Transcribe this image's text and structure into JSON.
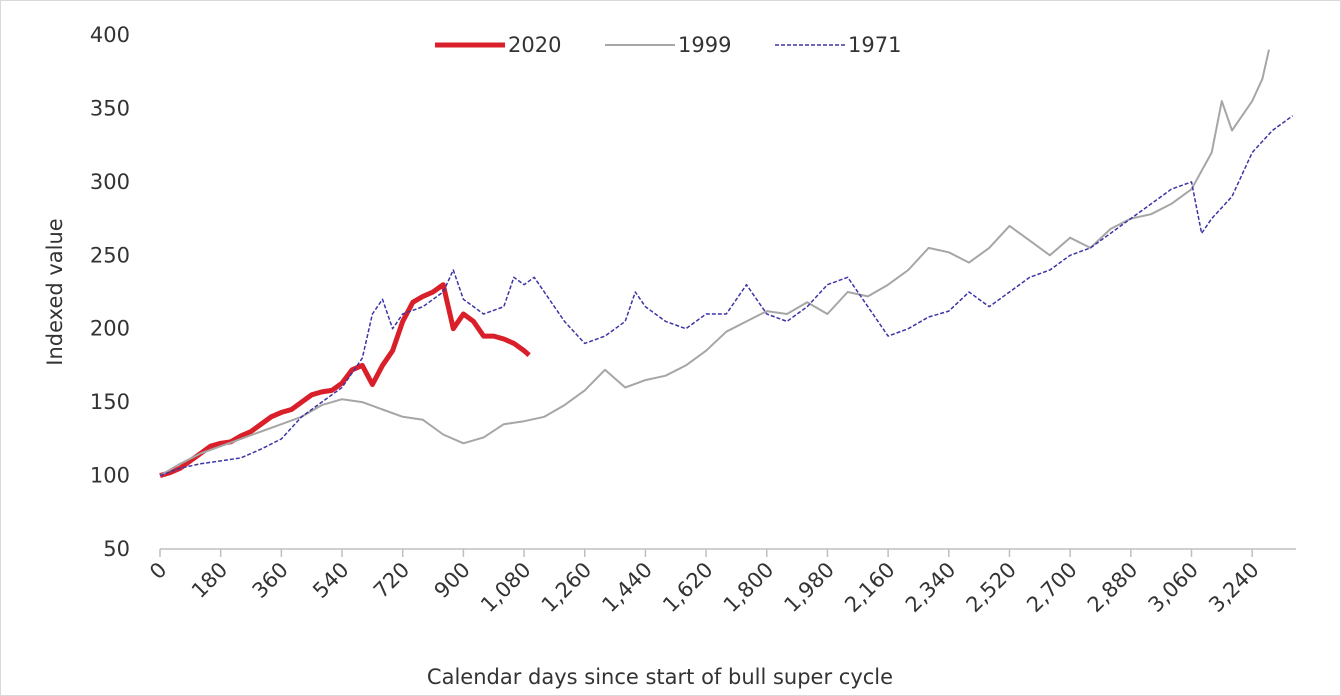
{
  "chart_data": {
    "type": "line",
    "x_label": "Calendar days since start of bull super cycle",
    "y_label": "Indexed value",
    "xlim": [
      0,
      3370
    ],
    "ylim": [
      50,
      400
    ],
    "xticks": [
      0,
      180,
      360,
      540,
      720,
      900,
      {
        "value": 1080,
        "label": "1,080"
      },
      {
        "value": 1260,
        "label": "1,260"
      },
      {
        "value": 1440,
        "label": "1,440"
      },
      {
        "value": 1620,
        "label": "1,620"
      },
      {
        "value": 1800,
        "label": "1,800"
      },
      {
        "value": 1980,
        "label": "1,980"
      },
      {
        "value": 2160,
        "label": "2,160"
      },
      {
        "value": 2340,
        "label": "2,340"
      },
      {
        "value": 2520,
        "label": "2,520"
      },
      {
        "value": 2700,
        "label": "2,700"
      },
      {
        "value": 2880,
        "label": "2,880"
      },
      {
        "value": 3060,
        "label": "3,060"
      },
      {
        "value": 3240,
        "label": "3,240"
      }
    ],
    "yticks": [
      50,
      100,
      150,
      200,
      250,
      300,
      350,
      400
    ],
    "grid": false,
    "legend": "top",
    "series": [
      {
        "name": "2020",
        "color": "#d9202a",
        "width": 5,
        "dashed": false,
        "x": [
          0,
          30,
          60,
          90,
          120,
          150,
          180,
          210,
          240,
          270,
          300,
          330,
          360,
          390,
          420,
          450,
          480,
          510,
          540,
          570,
          600,
          630,
          660,
          690,
          720,
          750,
          780,
          810,
          840,
          870,
          900,
          930,
          960,
          990,
          1020,
          1050,
          1080,
          1095
        ],
        "values": [
          100,
          102,
          105,
          110,
          115,
          120,
          122,
          123,
          127,
          130,
          135,
          140,
          143,
          145,
          150,
          155,
          157,
          158,
          163,
          172,
          175,
          162,
          175,
          185,
          205,
          218,
          222,
          225,
          230,
          200,
          210,
          205,
          195,
          195,
          193,
          190,
          185,
          182
        ]
      },
      {
        "name": "1999",
        "color": "#a6a6a6",
        "width": 2,
        "dashed": false,
        "x": [
          0,
          60,
          120,
          180,
          240,
          300,
          360,
          420,
          480,
          540,
          600,
          660,
          720,
          780,
          840,
          900,
          960,
          1020,
          1080,
          1140,
          1200,
          1260,
          1320,
          1380,
          1440,
          1500,
          1560,
          1620,
          1680,
          1740,
          1800,
          1860,
          1920,
          1980,
          2040,
          2100,
          2160,
          2220,
          2280,
          2340,
          2400,
          2460,
          2520,
          2580,
          2640,
          2700,
          2760,
          2820,
          2880,
          2940,
          3000,
          3060,
          3120,
          3150,
          3180,
          3240,
          3270,
          3290
        ],
        "values": [
          100,
          108,
          115,
          120,
          125,
          130,
          135,
          140,
          148,
          152,
          150,
          145,
          140,
          138,
          128,
          122,
          126,
          135,
          137,
          140,
          148,
          158,
          172,
          160,
          165,
          168,
          175,
          185,
          198,
          205,
          212,
          210,
          218,
          210,
          225,
          222,
          230,
          240,
          255,
          252,
          245,
          255,
          270,
          260,
          250,
          262,
          255,
          268,
          275,
          278,
          285,
          295,
          320,
          355,
          335,
          355,
          370,
          390
        ]
      },
      {
        "name": "1971",
        "color": "#3b35a6",
        "width": 1.5,
        "dashed": true,
        "x": [
          0,
          60,
          120,
          180,
          240,
          300,
          360,
          420,
          480,
          540,
          600,
          630,
          660,
          690,
          720,
          780,
          840,
          870,
          900,
          960,
          1020,
          1050,
          1080,
          1110,
          1140,
          1200,
          1260,
          1320,
          1380,
          1410,
          1440,
          1500,
          1560,
          1620,
          1680,
          1740,
          1800,
          1860,
          1920,
          1980,
          2040,
          2100,
          2160,
          2220,
          2280,
          2340,
          2400,
          2460,
          2520,
          2580,
          2640,
          2700,
          2760,
          2820,
          2880,
          2940,
          3000,
          3060,
          3090,
          3120,
          3180,
          3240,
          3300,
          3360
        ],
        "values": [
          100,
          105,
          108,
          110,
          112,
          118,
          125,
          140,
          150,
          160,
          180,
          210,
          220,
          200,
          210,
          215,
          225,
          240,
          220,
          210,
          215,
          235,
          230,
          235,
          225,
          205,
          190,
          195,
          205,
          225,
          215,
          205,
          200,
          210,
          210,
          230,
          210,
          205,
          215,
          230,
          235,
          215,
          195,
          200,
          208,
          212,
          225,
          215,
          225,
          235,
          240,
          250,
          255,
          265,
          275,
          285,
          295,
          300,
          265,
          275,
          290,
          320,
          335,
          345
        ]
      }
    ]
  }
}
